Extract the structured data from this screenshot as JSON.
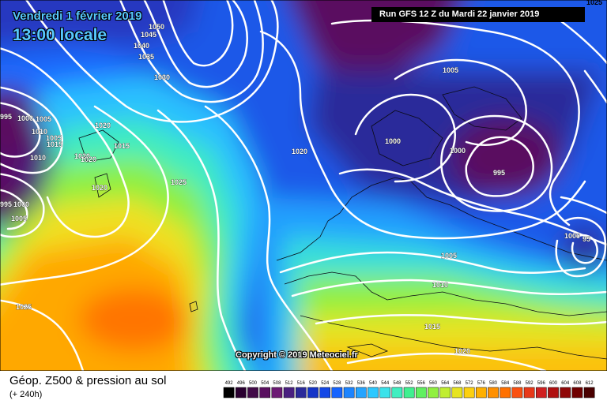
{
  "header": {
    "date": "Vendredi 1 février 2019",
    "time": "13:00 locale",
    "run": "Run GFS 12 Z du Mardi 22 janvier 2019",
    "corner_value": "1025"
  },
  "footer": {
    "title": "Géop. Z500 & pression au sol",
    "forecast_hours": "(+ 240h)",
    "copyright": "Copyright © 2019 Meteociel.fr"
  },
  "isobars": [
    {
      "label": "1050"
    },
    {
      "label": "1045"
    },
    {
      "label": "1040"
    },
    {
      "label": "1035"
    },
    {
      "label": "1030"
    },
    {
      "label": "1005"
    },
    {
      "label": "995"
    },
    {
      "label": "1000"
    },
    {
      "label": "1005"
    },
    {
      "label": "1010"
    },
    {
      "label": "1015"
    },
    {
      "label": "1020"
    },
    {
      "label": "1020"
    },
    {
      "label": "1015"
    },
    {
      "label": "1020"
    },
    {
      "label": "1020"
    },
    {
      "label": "1025"
    },
    {
      "label": "1020"
    },
    {
      "label": "1010"
    },
    {
      "label": "995"
    },
    {
      "label": "1000"
    },
    {
      "label": "1005"
    },
    {
      "label": "1025"
    },
    {
      "label": "1005"
    },
    {
      "label": "1000"
    },
    {
      "label": "1000"
    },
    {
      "label": "995"
    },
    {
      "label": "1000"
    },
    {
      "label": "95"
    },
    {
      "label": "1005"
    },
    {
      "label": "1010"
    },
    {
      "label": "1015"
    },
    {
      "label": "1020"
    }
  ],
  "colorbar": {
    "ticks": [
      "492",
      "496",
      "500",
      "504",
      "508",
      "512",
      "516",
      "520",
      "524",
      "528",
      "532",
      "536",
      "540",
      "544",
      "548",
      "552",
      "556",
      "560",
      "564",
      "568",
      "572",
      "576",
      "580",
      "584",
      "588",
      "592",
      "596",
      "600",
      "604",
      "608",
      "612"
    ],
    "colors": [
      "#000000",
      "#2a0030",
      "#420a48",
      "#5a1060",
      "#6c1a74",
      "#4a2080",
      "#2a2a9a",
      "#1434c8",
      "#1448e6",
      "#1664ff",
      "#1c84ff",
      "#24a4ff",
      "#2cc8ff",
      "#3ae2ea",
      "#40eec0",
      "#40f090",
      "#60f060",
      "#90f040",
      "#c0ee30",
      "#e6e420",
      "#fcd010",
      "#ffb000",
      "#ff9000",
      "#ff7000",
      "#fa5010",
      "#e83818",
      "#d02020",
      "#b01010",
      "#900808",
      "#700000",
      "#4a0000"
    ]
  }
}
